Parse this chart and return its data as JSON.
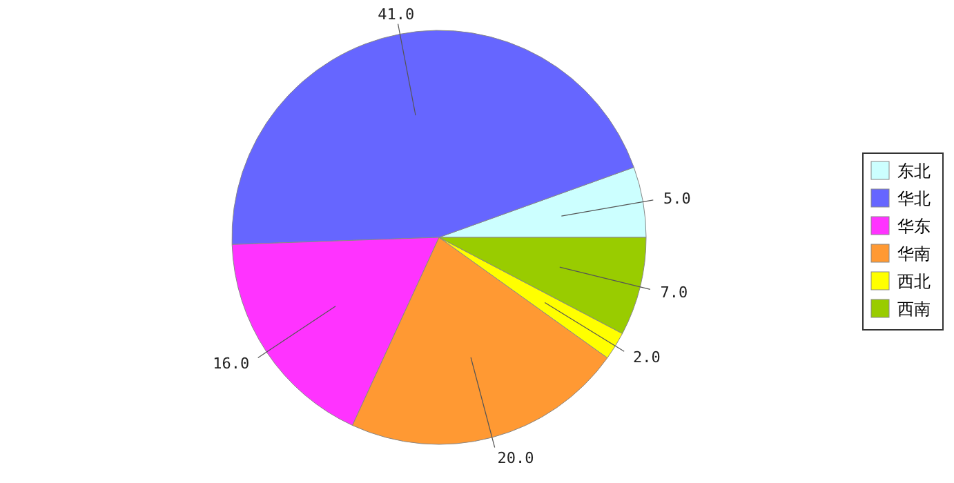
{
  "chart_data": {
    "type": "pie",
    "categories": [
      "东北",
      "华北",
      "华东",
      "华南",
      "西北",
      "西南"
    ],
    "values": [
      5,
      41,
      16,
      20,
      2,
      7
    ],
    "colors": [
      "#ccffff",
      "#6666ff",
      "#ff33ff",
      "#ff9933",
      "#ffff00",
      "#99cc00"
    ],
    "value_labels": [
      "5.0",
      "41.0",
      "16.0",
      "20.0",
      "2.0",
      "7.0"
    ],
    "legend": "right"
  }
}
